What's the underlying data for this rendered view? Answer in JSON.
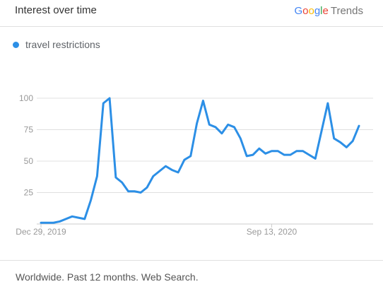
{
  "header": {
    "title": "Interest over time",
    "logo": {
      "letters": [
        "G",
        "o",
        "o",
        "g",
        "l",
        "e"
      ],
      "product": "Trends"
    }
  },
  "footer": {
    "text": "Worldwide. Past 12 months. Web Search."
  },
  "colors": {
    "series": "#2c8fe6",
    "grid": "#e0e0e0",
    "axis_text": "#999999"
  },
  "chart_data": {
    "type": "line",
    "title": "Interest over time",
    "xlabel": "",
    "ylabel": "",
    "ylim": [
      0,
      100
    ],
    "yticks": [
      25,
      50,
      75,
      100
    ],
    "xticks": [
      {
        "label": "Dec 29, 2019",
        "index": 0
      },
      {
        "label": "Sep 13, 2020",
        "index": 37
      }
    ],
    "grid": true,
    "legend": "top-left",
    "series": [
      {
        "name": "travel restrictions",
        "color": "#2c8fe6",
        "values": [
          1,
          1,
          1,
          2,
          4,
          6,
          5,
          4,
          19,
          38,
          96,
          100,
          37,
          33,
          26,
          26,
          25,
          29,
          38,
          42,
          46,
          43,
          41,
          51,
          54,
          80,
          98,
          79,
          77,
          72,
          79,
          77,
          68,
          54,
          55,
          60,
          56,
          58,
          58,
          55,
          55,
          58,
          58,
          55,
          52,
          74,
          96,
          68,
          65,
          61,
          66,
          78
        ]
      }
    ]
  }
}
